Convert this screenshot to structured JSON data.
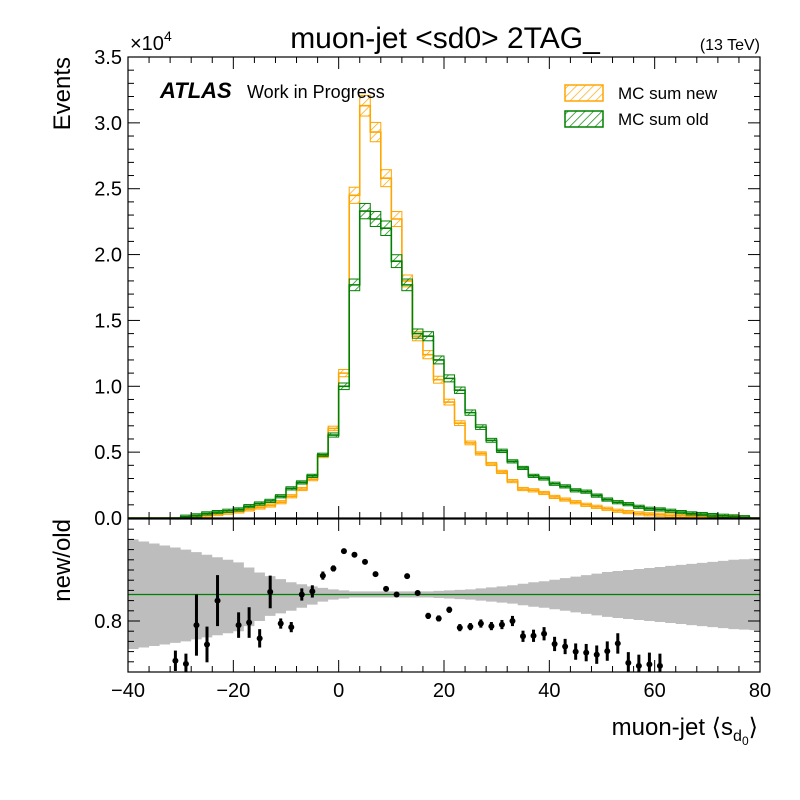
{
  "figure": {
    "title": "muon-jet <sd0> 2TAG_",
    "energy_label": "(13 TeV)",
    "atlas_label": "ATLAS",
    "atlas_sublabel": "Work in Progress",
    "exponent_base": "×10",
    "exponent_power": "4"
  },
  "colors": {
    "new": "#ffa500",
    "old": "#008000",
    "band": "#bdbdbd",
    "points": "#000000"
  },
  "chart_data": [
    {
      "type": "line",
      "panel": "main",
      "ylabel": "Events",
      "xlim": [
        -40,
        80
      ],
      "ylim": [
        0,
        35000
      ],
      "x_ticks": [
        -40,
        -20,
        0,
        20,
        40,
        60,
        80
      ],
      "y_ticks": [
        0,
        5000,
        10000,
        15000,
        20000,
        25000,
        30000,
        35000
      ],
      "y_tick_labels": [
        "0.0",
        "0.5",
        "1.0",
        "1.5",
        "2.0",
        "2.5",
        "3.0",
        "3.5"
      ],
      "legend_position": "top-right",
      "bin_edges": [
        -40,
        -38,
        -36,
        -34,
        -32,
        -30,
        -28,
        -26,
        -24,
        -22,
        -20,
        -18,
        -16,
        -14,
        -12,
        -10,
        -8,
        -6,
        -4,
        -2,
        0,
        2,
        4,
        6,
        8,
        10,
        12,
        14,
        16,
        18,
        20,
        22,
        24,
        26,
        28,
        30,
        32,
        34,
        36,
        38,
        40,
        42,
        44,
        46,
        48,
        50,
        52,
        54,
        56,
        58,
        60,
        62,
        64,
        66,
        68,
        70,
        72,
        74,
        76,
        78,
        80
      ],
      "series": [
        {
          "name": "MC sum new",
          "values": [
            0,
            0,
            0,
            0,
            0,
            0,
            100,
            200,
            300,
            400,
            500,
            650,
            800,
            950,
            1200,
            1650,
            2200,
            2950,
            4700,
            6800,
            11000,
            24500,
            31300,
            29300,
            25800,
            22700,
            18000,
            13800,
            12400,
            10500,
            8800,
            7200,
            5700,
            4900,
            4100,
            3500,
            2800,
            2200,
            2100,
            1900,
            1600,
            1400,
            1200,
            1000,
            850,
            700,
            550,
            450,
            350,
            280,
            250,
            200,
            170,
            140,
            120,
            100,
            80,
            60,
            50,
            0
          ]
        },
        {
          "name": "MC sum old",
          "values": [
            0,
            0,
            0,
            0,
            0,
            100,
            200,
            350,
            450,
            550,
            650,
            900,
            1100,
            1300,
            1650,
            2250,
            2700,
            3200,
            4800,
            6300,
            10000,
            17700,
            23300,
            22700,
            22000,
            19500,
            17700,
            14000,
            13800,
            12000,
            10600,
            9700,
            8000,
            6900,
            5900,
            5100,
            4300,
            3800,
            3200,
            3000,
            2600,
            2400,
            2100,
            2000,
            1700,
            1400,
            1200,
            1050,
            850,
            700,
            650,
            550,
            450,
            350,
            300,
            220,
            170,
            120,
            60,
            0
          ]
        }
      ]
    },
    {
      "type": "scatter",
      "panel": "ratio",
      "ylabel": "new/old",
      "xlabel": "muon-jet ⟨s",
      "xlabel_subscript": "d",
      "xlabel_subsubscript": "0",
      "xlabel_end": "⟩",
      "xlim": [
        -40,
        80
      ],
      "ylim": [
        0.7,
        1.0
      ],
      "y_ticks": [
        0.8
      ],
      "y_tick_labels": [
        "0.8"
      ],
      "reference_line": 0.852,
      "uncertainty_band": {
        "x": [
          -40,
          -38,
          -36,
          -34,
          -32,
          -30,
          -28,
          -26,
          -24,
          -22,
          -20,
          -18,
          -16,
          -14,
          -12,
          -10,
          -8,
          -6,
          -4,
          -2,
          0,
          2,
          4,
          6,
          8,
          10,
          12,
          14,
          16,
          18,
          20,
          22,
          24,
          26,
          28,
          30,
          32,
          34,
          36,
          38,
          40,
          42,
          44,
          46,
          48,
          50,
          52,
          54,
          56,
          58,
          60,
          62,
          64,
          66,
          68,
          70,
          72,
          74,
          76,
          78
        ],
        "low": [
          0.745,
          0.748,
          0.751,
          0.754,
          0.757,
          0.76,
          0.764,
          0.768,
          0.772,
          0.776,
          0.78,
          0.79,
          0.8,
          0.81,
          0.815,
          0.82,
          0.826,
          0.832,
          0.838,
          0.842,
          0.844,
          0.846,
          0.846,
          0.846,
          0.846,
          0.846,
          0.846,
          0.846,
          0.846,
          0.845,
          0.844,
          0.843,
          0.842,
          0.84,
          0.838,
          0.836,
          0.834,
          0.831,
          0.828,
          0.826,
          0.823,
          0.82,
          0.817,
          0.814,
          0.811,
          0.808,
          0.806,
          0.804,
          0.802,
          0.8,
          0.798,
          0.796,
          0.794,
          0.792,
          0.79,
          0.788,
          0.786,
          0.784,
          0.783,
          0.782
        ],
        "high": [
          0.96,
          0.956,
          0.952,
          0.948,
          0.944,
          0.94,
          0.935,
          0.93,
          0.925,
          0.92,
          0.915,
          0.905,
          0.895,
          0.888,
          0.882,
          0.876,
          0.872,
          0.868,
          0.865,
          0.862,
          0.86,
          0.858,
          0.858,
          0.858,
          0.858,
          0.858,
          0.858,
          0.858,
          0.858,
          0.859,
          0.86,
          0.861,
          0.862,
          0.864,
          0.866,
          0.868,
          0.87,
          0.873,
          0.876,
          0.878,
          0.881,
          0.884,
          0.887,
          0.89,
          0.893,
          0.896,
          0.898,
          0.9,
          0.902,
          0.904,
          0.906,
          0.908,
          0.91,
          0.912,
          0.914,
          0.916,
          0.918,
          0.92,
          0.921,
          0.922
        ]
      },
      "points": [
        {
          "x": -31,
          "y": 0.722,
          "err": 0.02
        },
        {
          "x": -29,
          "y": 0.716,
          "err": 0.02
        },
        {
          "x": -27,
          "y": 0.792,
          "err": 0.06
        },
        {
          "x": -25,
          "y": 0.754,
          "err": 0.035
        },
        {
          "x": -23,
          "y": 0.84,
          "err": 0.05
        },
        {
          "x": -19,
          "y": 0.792,
          "err": 0.025
        },
        {
          "x": -17,
          "y": 0.797,
          "err": 0.03
        },
        {
          "x": -15,
          "y": 0.766,
          "err": 0.018
        },
        {
          "x": -13,
          "y": 0.857,
          "err": 0.032
        },
        {
          "x": -11,
          "y": 0.795,
          "err": 0.01
        },
        {
          "x": -9,
          "y": 0.788,
          "err": 0.01
        },
        {
          "x": -7,
          "y": 0.852,
          "err": 0.012
        },
        {
          "x": -5,
          "y": 0.858,
          "err": 0.012
        },
        {
          "x": -3,
          "y": 0.889,
          "err": 0.008
        },
        {
          "x": -1,
          "y": 0.903,
          "err": 0.006
        },
        {
          "x": 1,
          "y": 0.937,
          "err": 0.005
        },
        {
          "x": 3,
          "y": 0.93,
          "err": 0.004
        },
        {
          "x": 5,
          "y": 0.916,
          "err": 0.004
        },
        {
          "x": 7,
          "y": 0.892,
          "err": 0.004
        },
        {
          "x": 9,
          "y": 0.863,
          "err": 0.004
        },
        {
          "x": 11,
          "y": 0.852,
          "err": 0.004
        },
        {
          "x": 13,
          "y": 0.888,
          "err": 0.005
        },
        {
          "x": 15,
          "y": 0.855,
          "err": 0.005
        },
        {
          "x": 17,
          "y": 0.81,
          "err": 0.006
        },
        {
          "x": 19,
          "y": 0.805,
          "err": 0.006
        },
        {
          "x": 21,
          "y": 0.822,
          "err": 0.006
        },
        {
          "x": 23,
          "y": 0.787,
          "err": 0.007
        },
        {
          "x": 25,
          "y": 0.789,
          "err": 0.007
        },
        {
          "x": 27,
          "y": 0.795,
          "err": 0.008
        },
        {
          "x": 29,
          "y": 0.79,
          "err": 0.008
        },
        {
          "x": 31,
          "y": 0.793,
          "err": 0.009
        },
        {
          "x": 33,
          "y": 0.8,
          "err": 0.01
        },
        {
          "x": 35,
          "y": 0.77,
          "err": 0.011
        },
        {
          "x": 37,
          "y": 0.771,
          "err": 0.012
        },
        {
          "x": 39,
          "y": 0.775,
          "err": 0.013
        },
        {
          "x": 41,
          "y": 0.755,
          "err": 0.014
        },
        {
          "x": 43,
          "y": 0.75,
          "err": 0.015
        },
        {
          "x": 45,
          "y": 0.74,
          "err": 0.016
        },
        {
          "x": 47,
          "y": 0.738,
          "err": 0.017
        },
        {
          "x": 49,
          "y": 0.734,
          "err": 0.018
        },
        {
          "x": 51,
          "y": 0.741,
          "err": 0.019
        },
        {
          "x": 53,
          "y": 0.756,
          "err": 0.02
        },
        {
          "x": 55,
          "y": 0.718,
          "err": 0.021
        },
        {
          "x": 57,
          "y": 0.712,
          "err": 0.022
        },
        {
          "x": 59,
          "y": 0.715,
          "err": 0.023
        },
        {
          "x": 61,
          "y": 0.712,
          "err": 0.024
        }
      ]
    }
  ]
}
